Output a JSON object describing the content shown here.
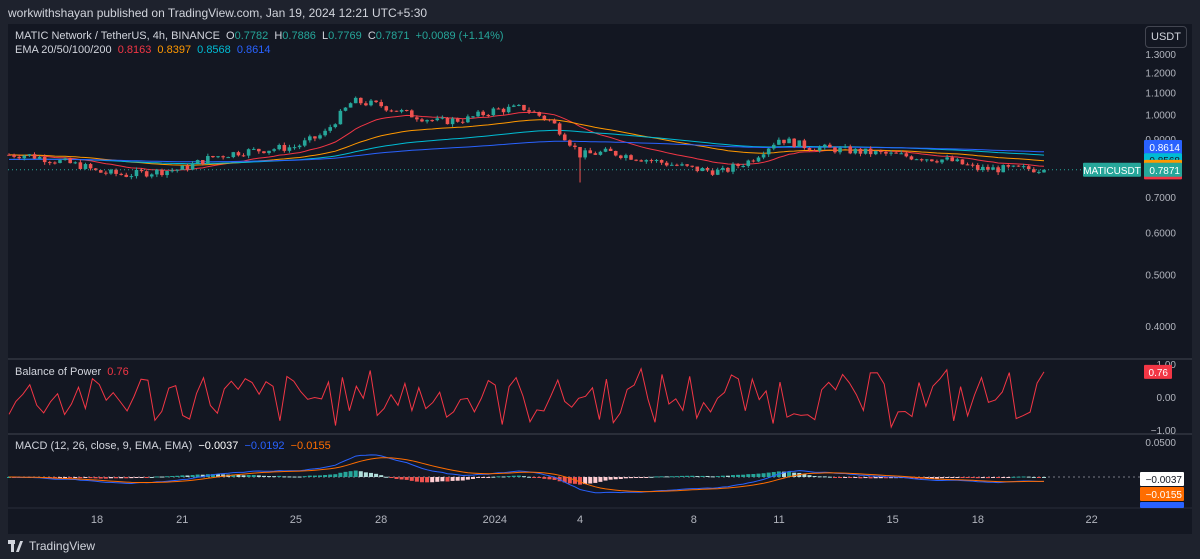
{
  "header": {
    "published": "workwithshayan published on TradingView.com, Jan 19, 2024 12:21 UTC+5:30"
  },
  "legend": {
    "symbol": "MATIC Network / TetherUS, 4h, BINANCE",
    "o_label": "O",
    "o": "0.7782",
    "h_label": "H",
    "h": "0.7886",
    "l_label": "L",
    "l": "0.7769",
    "c_label": "C",
    "c": "0.7871",
    "change": "+0.0089 (+1.14%)",
    "ema_label": "EMA 20/50/100/200",
    "ema20": "0.8163",
    "ema50": "0.8397",
    "ema100": "0.8568",
    "ema200": "0.8614"
  },
  "currency_button": "USDT",
  "bop_legend": {
    "label": "Balance of Power",
    "value": "0.76"
  },
  "macd_legend": {
    "label": "MACD (12, 26, close, 9, EMA, EMA)",
    "hist": "−0.0037",
    "macd": "−0.0192",
    "signal": "−0.0155"
  },
  "price_tags": {
    "ema200": "0.8614",
    "ema100": "0.8568",
    "ema50": "0.8397",
    "ema20": "0.8163",
    "symbol": "MATICUSDT",
    "close": "0.7871"
  },
  "bop_tag": "0.76",
  "macd_tags": {
    "hist": "−0.0037",
    "signal": "−0.0155",
    "macd": "−0.0192"
  },
  "footer": {
    "brand": "TradingView"
  },
  "colors": {
    "up": "#26a69a",
    "down": "#ef5350",
    "ema20": "#f23645",
    "ema50": "#ff9800",
    "ema100": "#00bcd4",
    "ema200": "#2962ff",
    "bop": "#f23645",
    "macd": "#2962ff",
    "signal": "#ff6d00"
  },
  "chart_data": [
    {
      "type": "candlestick",
      "title": "MATIC Network / TetherUS, 4h, BINANCE",
      "y_ticks": [
        "1.3000",
        "1.2000",
        "1.1000",
        "1.0000",
        "0.9000",
        "0.8000",
        "0.7000",
        "0.6000",
        "0.5000",
        "0.4000"
      ],
      "x_ticks": [
        "18",
        "21",
        "25",
        "28",
        "2024",
        "4",
        "8",
        "11",
        "15",
        "18",
        "22"
      ],
      "ylim": [
        0.35,
        1.33
      ],
      "scale": "log",
      "grid": true,
      "legend_position": "top-left",
      "x_range": [
        15.5,
        22.6
      ],
      "x_axis_note": "x is the date tick position (day number), 2024 marks Jan 1",
      "candles_x": [
        15.5,
        22.3
      ],
      "closes_daily_approx": [
        {
          "x": 15.5,
          "close": 0.84
        },
        {
          "x": 16.5,
          "close": 0.82
        },
        {
          "x": 17.5,
          "close": 0.8
        },
        {
          "x": 18,
          "close": 0.78
        },
        {
          "x": 19,
          "close": 0.77
        },
        {
          "x": 20,
          "close": 0.78
        },
        {
          "x": 21,
          "close": 0.79
        },
        {
          "x": 22,
          "close": 0.83
        },
        {
          "x": 23,
          "close": 0.85
        },
        {
          "x": 24,
          "close": 0.86
        },
        {
          "x": 25,
          "close": 0.87
        },
        {
          "x": 26,
          "close": 0.92
        },
        {
          "x": 27,
          "close": 1.06
        },
        {
          "x": 28,
          "close": 1.04
        },
        {
          "x": 29,
          "close": 1.0
        },
        {
          "x": 30,
          "close": 0.97
        },
        {
          "x": 31,
          "close": 0.98
        },
        {
          "x": 32,
          "close": 1.02
        },
        {
          "x": 33,
          "close": 1.03
        },
        {
          "x": 34,
          "close": 0.97
        },
        {
          "x": 35,
          "close": 0.84
        },
        {
          "x": 36,
          "close": 0.85
        },
        {
          "x": 37,
          "close": 0.83
        },
        {
          "x": 38,
          "close": 0.81
        },
        {
          "x": 39,
          "close": 0.79
        },
        {
          "x": 40,
          "close": 0.78
        },
        {
          "x": 41,
          "close": 0.82
        },
        {
          "x": 42,
          "close": 0.9
        },
        {
          "x": 43,
          "close": 0.87
        },
        {
          "x": 44,
          "close": 0.86
        },
        {
          "x": 45,
          "close": 0.85
        },
        {
          "x": 46,
          "close": 0.84
        },
        {
          "x": 47,
          "close": 0.83
        },
        {
          "x": 48,
          "close": 0.82
        },
        {
          "x": 49,
          "close": 0.79
        }
      ],
      "wick_low_jan3": 0.745,
      "series": [
        {
          "name": "EMA 20",
          "value": 0.8163
        },
        {
          "name": "EMA 50",
          "value": 0.8397
        },
        {
          "name": "EMA 100",
          "value": 0.8568
        },
        {
          "name": "EMA 200",
          "value": 0.8614
        }
      ],
      "last": {
        "open": 0.7782,
        "high": 0.7886,
        "low": 0.7769,
        "close": 0.7871
      }
    },
    {
      "type": "line",
      "title": "Balance of Power",
      "y_ticks": [
        "1.00",
        "0.00",
        "−1.00"
      ],
      "ylim": [
        -1.0,
        1.0
      ],
      "last_value": 0.76
    },
    {
      "type": "bar",
      "title": "MACD (12, 26, close, 9, EMA, EMA)",
      "y_ticks": [
        "0.0500"
      ],
      "series": [
        {
          "name": "Histogram",
          "last": -0.0037
        },
        {
          "name": "MACD",
          "last": -0.0192
        },
        {
          "name": "Signal",
          "last": -0.0155
        }
      ],
      "macd_peak": 0.045,
      "macd_trough": -0.028
    }
  ]
}
